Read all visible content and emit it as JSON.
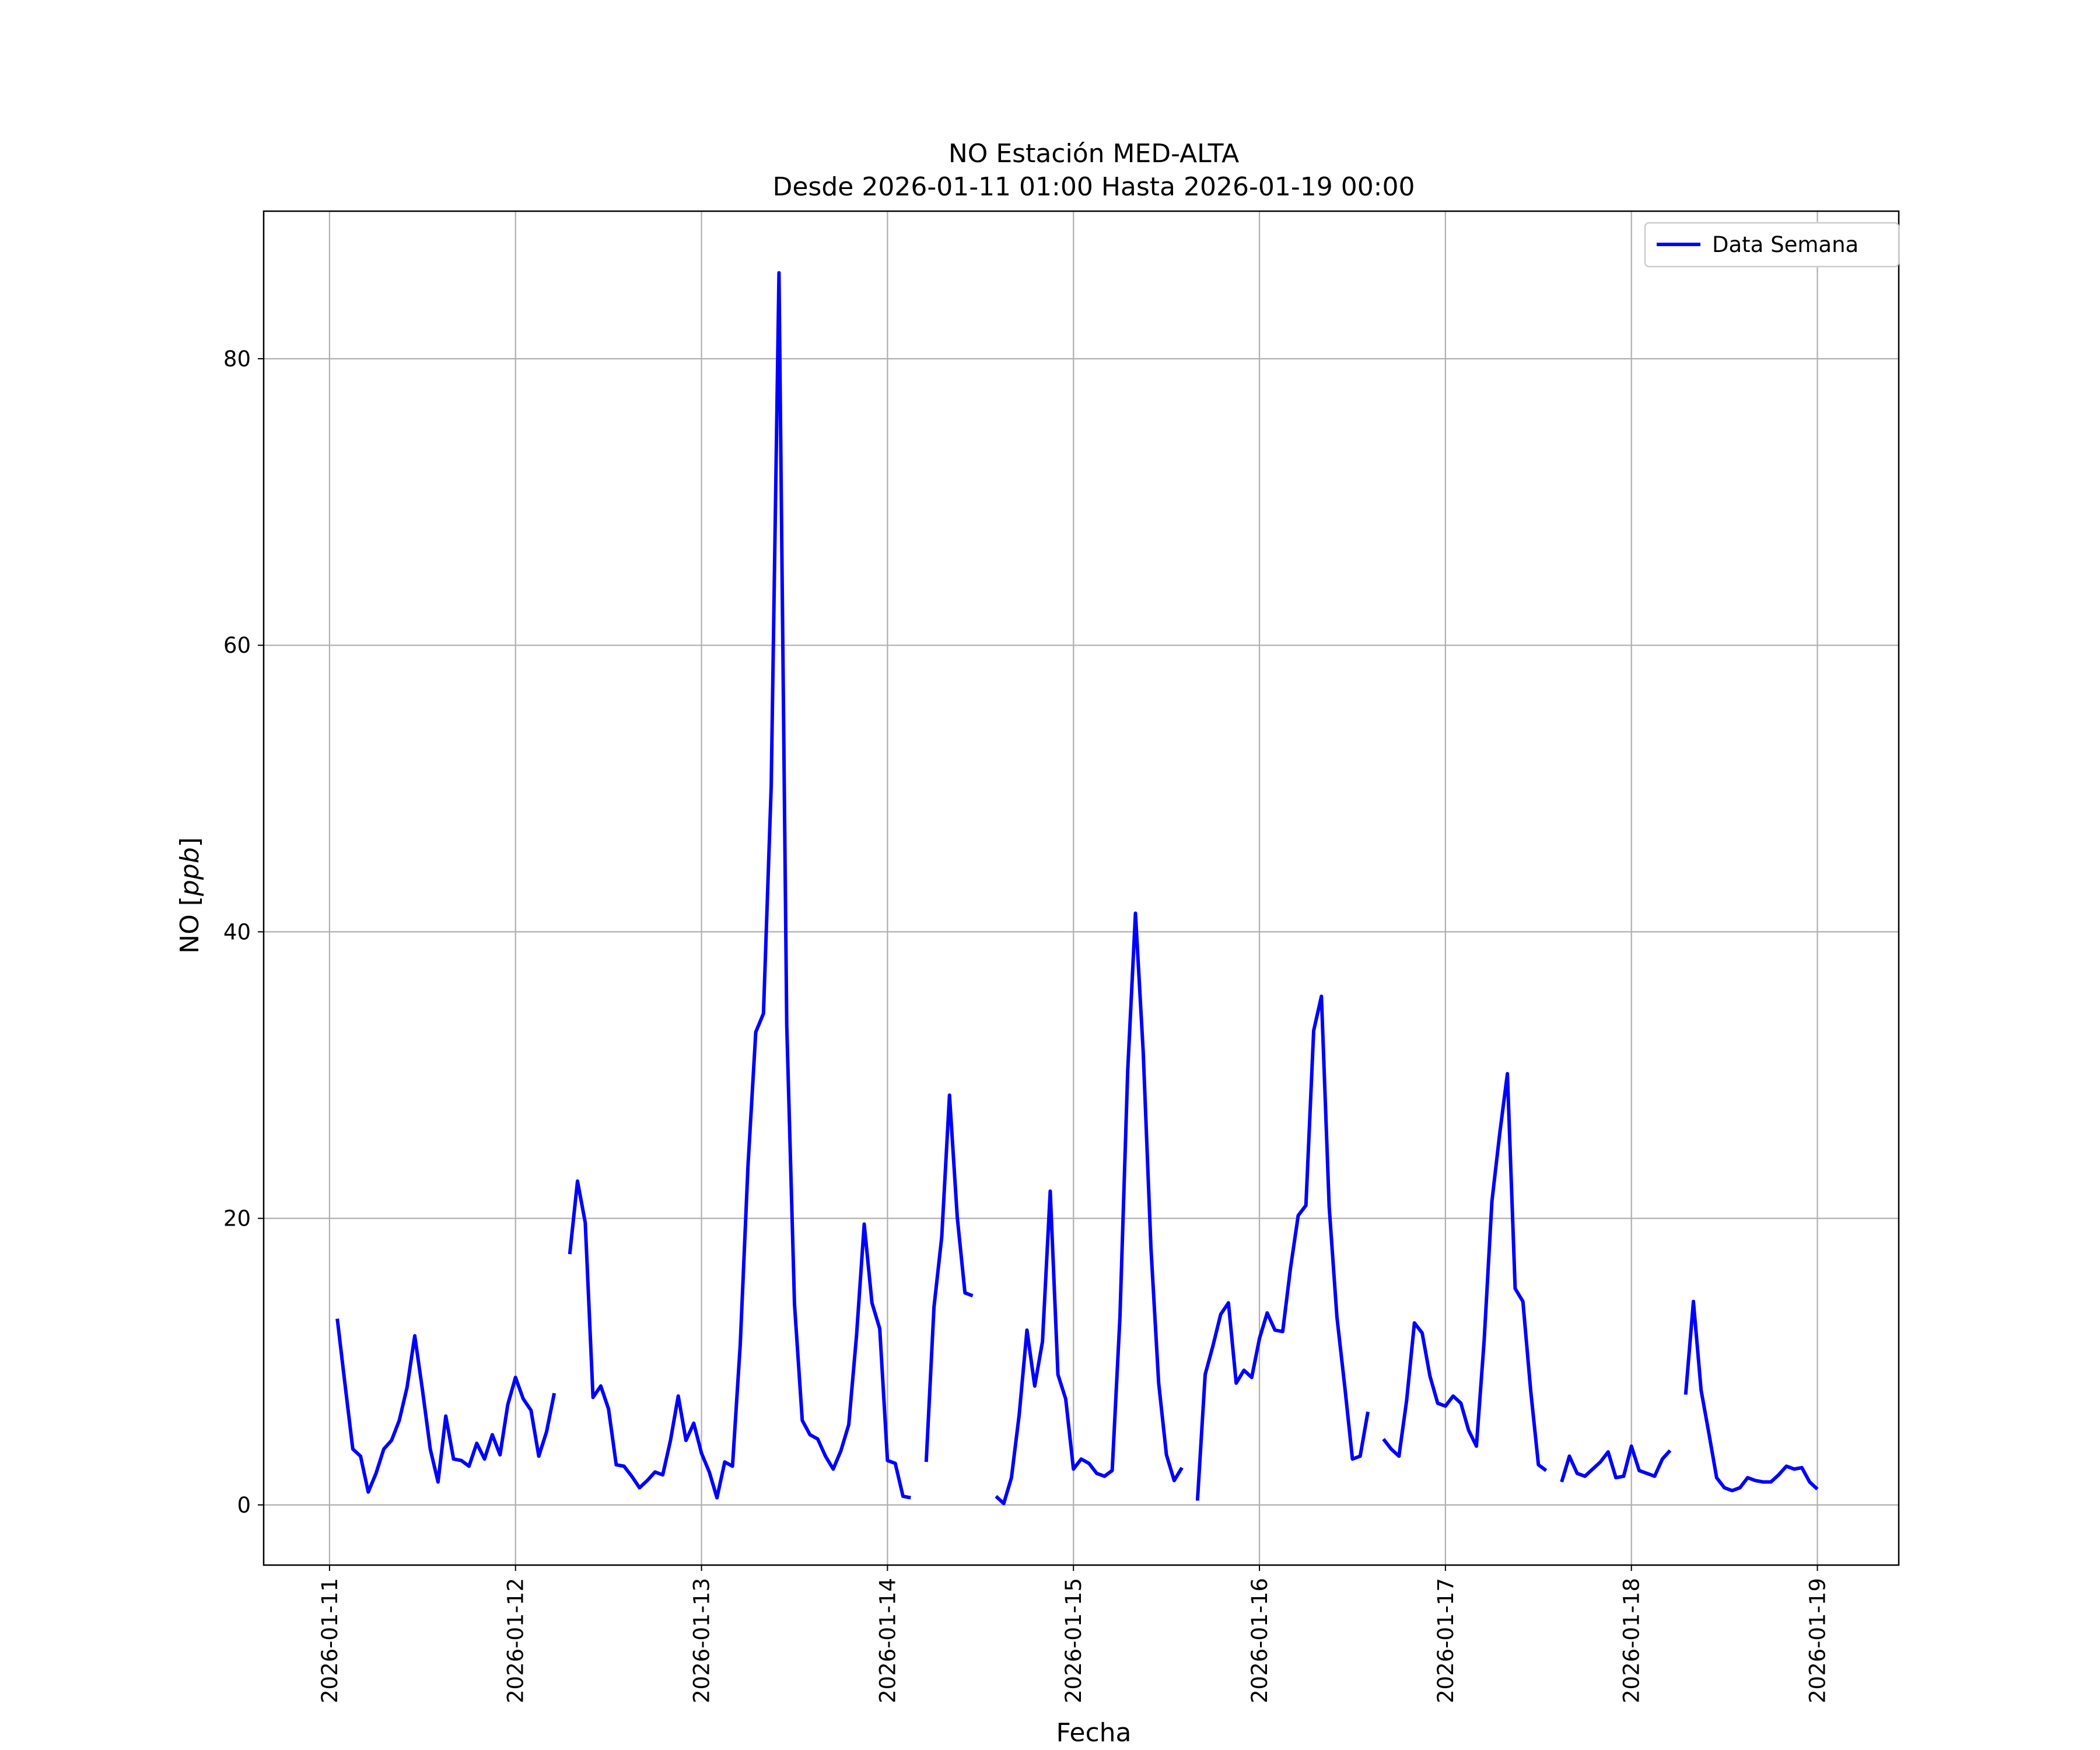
{
  "chart_data": {
    "type": "line",
    "title": "NO Estación MED-ALTA",
    "subtitle": "Desde 2026-01-11 01:00 Hasta 2026-01-19 00:00",
    "xlabel": "Fecha",
    "ylabel_prefix": "NO [",
    "ylabel_unit": "ppb",
    "ylabel_suffix": "]",
    "xlim": [
      "2026-01-10 15:30",
      "2026-01-19 10:30"
    ],
    "ylim": [
      -4.2,
      90.3
    ],
    "grid": true,
    "legend_position": "top-right",
    "x_ticks": [
      "2026-01-11",
      "2026-01-12",
      "2026-01-13",
      "2026-01-14",
      "2026-01-15",
      "2026-01-16",
      "2026-01-17",
      "2026-01-18",
      "2026-01-19"
    ],
    "y_ticks": [
      0,
      20,
      40,
      60,
      80
    ],
    "series": [
      {
        "name": "Data Semana",
        "color": "#0000ff",
        "segments": [
          [
            [
              "2026-01-11 01:00",
              13.0
            ],
            [
              "2026-01-11 02:00",
              8.4
            ],
            [
              "2026-01-11 03:00",
              3.9
            ],
            [
              "2026-01-11 04:00",
              3.4
            ],
            [
              "2026-01-11 05:00",
              0.9
            ],
            [
              "2026-01-11 06:00",
              2.2
            ],
            [
              "2026-01-11 07:00",
              3.9
            ],
            [
              "2026-01-11 08:00",
              4.5
            ],
            [
              "2026-01-11 09:00",
              5.9
            ],
            [
              "2026-01-11 10:00",
              8.2
            ],
            [
              "2026-01-11 11:00",
              11.8
            ],
            [
              "2026-01-11 12:00",
              8.0
            ],
            [
              "2026-01-11 13:00",
              3.9
            ],
            [
              "2026-01-11 14:00",
              1.6
            ],
            [
              "2026-01-11 15:00",
              6.2
            ],
            [
              "2026-01-11 16:00",
              3.2
            ],
            [
              "2026-01-11 17:00",
              3.1
            ],
            [
              "2026-01-11 18:00",
              2.7
            ],
            [
              "2026-01-11 19:00",
              4.3
            ],
            [
              "2026-01-11 20:00",
              3.2
            ],
            [
              "2026-01-11 21:00",
              4.9
            ],
            [
              "2026-01-11 22:00",
              3.5
            ],
            [
              "2026-01-11 23:00",
              7.0
            ],
            [
              "2026-01-12 00:00",
              8.9
            ],
            [
              "2026-01-12 01:00",
              7.4
            ],
            [
              "2026-01-12 02:00",
              6.6
            ],
            [
              "2026-01-12 03:00",
              3.4
            ],
            [
              "2026-01-12 04:00",
              5.1
            ],
            [
              "2026-01-12 05:00",
              7.8
            ]
          ],
          [
            [
              "2026-01-12 07:00",
              17.5
            ],
            [
              "2026-01-12 08:00",
              22.6
            ],
            [
              "2026-01-12 09:00",
              19.7
            ],
            [
              "2026-01-12 10:00",
              7.5
            ],
            [
              "2026-01-12 11:00",
              8.3
            ],
            [
              "2026-01-12 12:00",
              6.7
            ],
            [
              "2026-01-12 13:00",
              2.8
            ],
            [
              "2026-01-12 14:00",
              2.7
            ],
            [
              "2026-01-12 15:00",
              2.0
            ],
            [
              "2026-01-12 16:00",
              1.2
            ],
            [
              "2026-01-12 17:00",
              1.7
            ],
            [
              "2026-01-12 18:00",
              2.3
            ],
            [
              "2026-01-12 19:00",
              2.1
            ],
            [
              "2026-01-12 20:00",
              4.5
            ],
            [
              "2026-01-12 21:00",
              7.6
            ],
            [
              "2026-01-12 22:00",
              4.5
            ],
            [
              "2026-01-12 23:00",
              5.7
            ],
            [
              "2026-01-13 00:00",
              3.6
            ],
            [
              "2026-01-13 01:00",
              2.3
            ],
            [
              "2026-01-13 02:00",
              0.5
            ],
            [
              "2026-01-13 03:00",
              3.0
            ],
            [
              "2026-01-13 04:00",
              2.7
            ],
            [
              "2026-01-13 05:00",
              11.2
            ],
            [
              "2026-01-13 06:00",
              23.7
            ],
            [
              "2026-01-13 07:00",
              33.0
            ],
            [
              "2026-01-13 08:00",
              34.3
            ],
            [
              "2026-01-13 09:00",
              50.2
            ],
            [
              "2026-01-13 10:00",
              86.0
            ],
            [
              "2026-01-13 11:00",
              33.5
            ],
            [
              "2026-01-13 12:00",
              14.0
            ],
            [
              "2026-01-13 13:00",
              5.9
            ],
            [
              "2026-01-13 14:00",
              4.9
            ],
            [
              "2026-01-13 15:00",
              4.6
            ],
            [
              "2026-01-13 16:00",
              3.4
            ],
            [
              "2026-01-13 17:00",
              2.5
            ],
            [
              "2026-01-13 18:00",
              3.8
            ],
            [
              "2026-01-13 19:00",
              5.6
            ],
            [
              "2026-01-13 20:00",
              11.8
            ],
            [
              "2026-01-13 21:00",
              19.6
            ],
            [
              "2026-01-13 22:00",
              14.1
            ],
            [
              "2026-01-13 23:00",
              12.3
            ],
            [
              "2026-01-14 00:00",
              3.1
            ],
            [
              "2026-01-14 01:00",
              2.9
            ],
            [
              "2026-01-14 02:00",
              0.6
            ],
            [
              "2026-01-14 03:00",
              0.5
            ]
          ],
          [
            [
              "2026-01-14 05:00",
              3.0
            ],
            [
              "2026-01-14 06:00",
              13.8
            ],
            [
              "2026-01-14 07:00",
              18.7
            ],
            [
              "2026-01-14 08:00",
              28.6
            ],
            [
              "2026-01-14 09:00",
              20.1
            ],
            [
              "2026-01-14 10:00",
              14.8
            ],
            [
              "2026-01-14 11:00",
              14.6
            ]
          ],
          [
            [
              "2026-01-14 14:00",
              0.6
            ],
            [
              "2026-01-14 15:00",
              0.1
            ],
            [
              "2026-01-14 16:00",
              1.9
            ],
            [
              "2026-01-14 17:00",
              6.3
            ],
            [
              "2026-01-14 18:00",
              12.2
            ],
            [
              "2026-01-14 19:00",
              8.3
            ],
            [
              "2026-01-14 20:00",
              11.4
            ],
            [
              "2026-01-14 21:00",
              21.9
            ],
            [
              "2026-01-14 22:00",
              9.1
            ],
            [
              "2026-01-14 23:00",
              7.4
            ],
            [
              "2026-01-15 00:00",
              2.5
            ],
            [
              "2026-01-15 01:00",
              3.2
            ],
            [
              "2026-01-15 02:00",
              2.9
            ],
            [
              "2026-01-15 03:00",
              2.2
            ],
            [
              "2026-01-15 04:00",
              2.0
            ],
            [
              "2026-01-15 05:00",
              2.4
            ],
            [
              "2026-01-15 06:00",
              13.1
            ],
            [
              "2026-01-15 07:00",
              30.3
            ],
            [
              "2026-01-15 08:00",
              41.3
            ],
            [
              "2026-01-15 09:00",
              31.6
            ],
            [
              "2026-01-15 10:00",
              17.9
            ],
            [
              "2026-01-15 11:00",
              8.5
            ],
            [
              "2026-01-15 12:00",
              3.5
            ],
            [
              "2026-01-15 13:00",
              1.7
            ],
            [
              "2026-01-15 14:00",
              2.6
            ]
          ],
          [
            [
              "2026-01-15 16:00",
              0.3
            ],
            [
              "2026-01-15 17:00",
              9.1
            ],
            [
              "2026-01-15 18:00",
              11.1
            ],
            [
              "2026-01-15 19:00",
              13.3
            ],
            [
              "2026-01-15 20:00",
              14.1
            ],
            [
              "2026-01-15 21:00",
              8.5
            ],
            [
              "2026-01-15 22:00",
              9.4
            ],
            [
              "2026-01-15 23:00",
              8.9
            ],
            [
              "2026-01-16 00:00",
              11.6
            ],
            [
              "2026-01-16 01:00",
              13.4
            ],
            [
              "2026-01-16 02:00",
              12.2
            ],
            [
              "2026-01-16 03:00",
              12.1
            ],
            [
              "2026-01-16 04:00",
              16.5
            ],
            [
              "2026-01-16 05:00",
              20.2
            ],
            [
              "2026-01-16 06:00",
              20.9
            ],
            [
              "2026-01-16 07:00",
              33.1
            ],
            [
              "2026-01-16 08:00",
              35.5
            ],
            [
              "2026-01-16 09:00",
              20.8
            ],
            [
              "2026-01-16 10:00",
              13.1
            ],
            [
              "2026-01-16 11:00",
              8.3
            ],
            [
              "2026-01-16 12:00",
              3.2
            ],
            [
              "2026-01-16 13:00",
              3.4
            ],
            [
              "2026-01-16 14:00",
              6.5
            ]
          ],
          [
            [
              "2026-01-16 16:00",
              4.6
            ],
            [
              "2026-01-16 17:00",
              3.9
            ],
            [
              "2026-01-16 18:00",
              3.4
            ],
            [
              "2026-01-16 19:00",
              7.3
            ],
            [
              "2026-01-16 20:00",
              12.7
            ],
            [
              "2026-01-16 21:00",
              12.0
            ],
            [
              "2026-01-16 22:00",
              9.0
            ],
            [
              "2026-01-16 23:00",
              7.1
            ],
            [
              "2026-01-17 00:00",
              6.9
            ],
            [
              "2026-01-17 01:00",
              7.6
            ],
            [
              "2026-01-17 02:00",
              7.1
            ],
            [
              "2026-01-17 03:00",
              5.2
            ],
            [
              "2026-01-17 04:00",
              4.1
            ],
            [
              "2026-01-17 05:00",
              11.5
            ],
            [
              "2026-01-17 06:00",
              21.2
            ],
            [
              "2026-01-17 07:00",
              25.9
            ],
            [
              "2026-01-17 08:00",
              30.1
            ],
            [
              "2026-01-17 09:00",
              15.1
            ],
            [
              "2026-01-17 10:00",
              14.2
            ],
            [
              "2026-01-17 11:00",
              8.0
            ],
            [
              "2026-01-17 12:00",
              2.8
            ],
            [
              "2026-01-17 13:00",
              2.4
            ]
          ],
          [
            [
              "2026-01-17 15:00",
              1.6
            ],
            [
              "2026-01-17 16:00",
              3.4
            ],
            [
              "2026-01-17 17:00",
              2.2
            ],
            [
              "2026-01-17 18:00",
              2.0
            ],
            [
              "2026-01-17 19:00",
              2.5
            ],
            [
              "2026-01-17 20:00",
              3.0
            ],
            [
              "2026-01-17 21:00",
              3.7
            ],
            [
              "2026-01-17 22:00",
              1.9
            ],
            [
              "2026-01-17 23:00",
              2.0
            ],
            [
              "2026-01-18 00:00",
              4.1
            ],
            [
              "2026-01-18 01:00",
              2.4
            ],
            [
              "2026-01-18 02:00",
              2.2
            ],
            [
              "2026-01-18 03:00",
              2.0
            ],
            [
              "2026-01-18 04:00",
              3.2
            ],
            [
              "2026-01-18 05:00",
              3.8
            ]
          ],
          [
            [
              "2026-01-18 07:00",
              7.7
            ],
            [
              "2026-01-18 08:00",
              14.2
            ],
            [
              "2026-01-18 09:00",
              8.0
            ],
            [
              "2026-01-18 10:00",
              5.0
            ],
            [
              "2026-01-18 11:00",
              1.9
            ],
            [
              "2026-01-18 12:00",
              1.2
            ],
            [
              "2026-01-18 13:00",
              1.0
            ],
            [
              "2026-01-18 14:00",
              1.2
            ],
            [
              "2026-01-18 15:00",
              1.9
            ],
            [
              "2026-01-18 16:00",
              1.7
            ],
            [
              "2026-01-18 17:00",
              1.6
            ],
            [
              "2026-01-18 18:00",
              1.6
            ],
            [
              "2026-01-18 19:00",
              2.1
            ],
            [
              "2026-01-18 20:00",
              2.7
            ],
            [
              "2026-01-18 21:00",
              2.5
            ],
            [
              "2026-01-18 22:00",
              2.6
            ],
            [
              "2026-01-18 23:00",
              1.6
            ],
            [
              "2026-01-19 00:00",
              1.1
            ]
          ]
        ]
      }
    ]
  }
}
